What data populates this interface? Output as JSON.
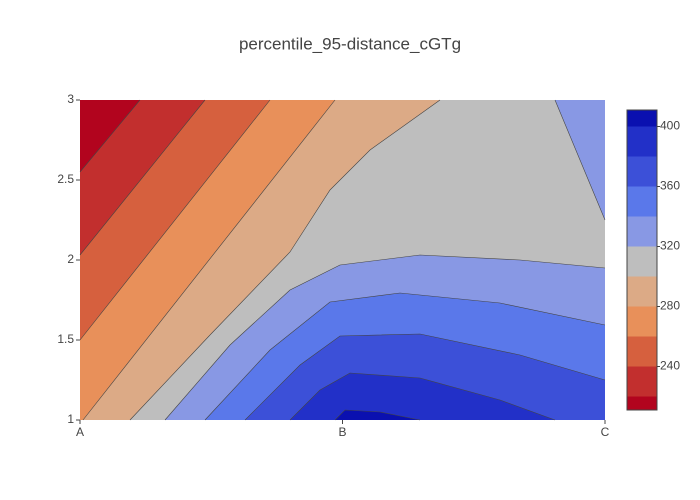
{
  "chart_data": {
    "type": "contour",
    "title": "percentile_95-distance_cGTg",
    "categories": [
      "A",
      "B",
      "C"
    ],
    "ylim": [
      1,
      3
    ],
    "yticks": [
      1,
      1.5,
      2,
      2.5,
      3
    ],
    "zlim": [
      211,
      411
    ],
    "zticks": [
      240,
      280,
      320,
      360,
      400
    ],
    "levels": [
      220,
      240,
      260,
      280,
      300,
      320,
      340,
      360,
      380,
      400
    ],
    "colors": [
      "#b2041e",
      "#c22f2e",
      "#d6603e",
      "#e8905a",
      "#dcaa86",
      "#bebebe",
      "#8898e4",
      "#5a78ea",
      "#3c50d8",
      "#2230c8",
      "#0a10b0"
    ]
  }
}
